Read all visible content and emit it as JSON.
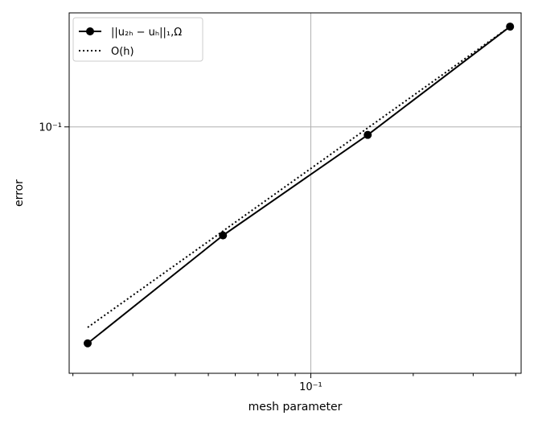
{
  "chart_data": {
    "type": "line",
    "xscale": "log",
    "yscale": "log",
    "xlabel": "mesh parameter",
    "ylabel": "error",
    "xlim": [
      0.0195,
      0.415
    ],
    "ylim": [
      0.0212,
      0.205
    ],
    "x_major_ticks": [
      {
        "value": 0.1,
        "label": "10⁻¹"
      }
    ],
    "y_major_ticks": [
      {
        "value": 0.1,
        "label": "10⁻¹"
      }
    ],
    "x_minor_ticks": [
      0.02,
      0.03,
      0.04,
      0.05,
      0.06,
      0.07,
      0.08,
      0.09,
      0.2,
      0.3,
      0.4
    ],
    "grid": "major",
    "legend_position": "top-left",
    "series": [
      {
        "name": "||u₂ₕ − uₕ||₁,Ω",
        "style": "solid",
        "marker": "circle",
        "color": "#000000",
        "x": [
          0.0221,
          0.0552,
          0.147,
          0.385
        ],
        "y": [
          0.0256,
          0.0505,
          0.0951,
          0.188
        ]
      },
      {
        "name": "O(h)",
        "style": "dotted",
        "marker": "none",
        "color": "#000000",
        "x": [
          0.0221,
          0.385
        ],
        "y": [
          0.0283,
          0.188
        ]
      }
    ]
  }
}
